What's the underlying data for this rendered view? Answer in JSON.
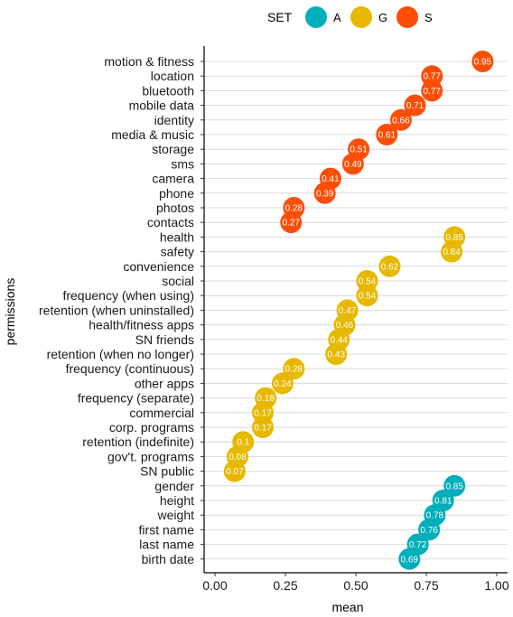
{
  "chart_data": {
    "type": "scatter",
    "title": "",
    "xlabel": "mean",
    "ylabel": "permissions",
    "xlim": [
      0,
      1
    ],
    "xticks": [
      "0.00",
      "0.25",
      "0.50",
      "0.75",
      "1.00"
    ],
    "xtick_values": [
      0,
      0.25,
      0.5,
      0.75,
      1.0
    ],
    "grid": "horizontal",
    "legend": {
      "title": "SET",
      "placement": "top",
      "entries": [
        {
          "name": "A",
          "color": "#00AFBB"
        },
        {
          "name": "G",
          "color": "#E7B800"
        },
        {
          "name": "S",
          "color": "#FC4E07"
        }
      ]
    },
    "points": [
      {
        "label": "motion & fitness",
        "value": 0.95,
        "text": "0.95",
        "set": "S"
      },
      {
        "label": "location",
        "value": 0.77,
        "text": "0.77",
        "set": "S"
      },
      {
        "label": "bluetooth",
        "value": 0.77,
        "text": "0.77",
        "set": "S"
      },
      {
        "label": "mobile data",
        "value": 0.71,
        "text": "0.71",
        "set": "S"
      },
      {
        "label": "identity",
        "value": 0.66,
        "text": "0.66",
        "set": "S"
      },
      {
        "label": "media & music",
        "value": 0.61,
        "text": "0.61",
        "set": "S"
      },
      {
        "label": "storage",
        "value": 0.51,
        "text": "0.51",
        "set": "S"
      },
      {
        "label": "sms",
        "value": 0.49,
        "text": "0.49",
        "set": "S"
      },
      {
        "label": "camera",
        "value": 0.41,
        "text": "0.41",
        "set": "S"
      },
      {
        "label": "phone",
        "value": 0.39,
        "text": "0.39",
        "set": "S"
      },
      {
        "label": "photos",
        "value": 0.28,
        "text": "0.28",
        "set": "S"
      },
      {
        "label": "contacts",
        "value": 0.27,
        "text": "0.27",
        "set": "S"
      },
      {
        "label": "health",
        "value": 0.85,
        "text": "0.85",
        "set": "G"
      },
      {
        "label": "safety",
        "value": 0.84,
        "text": "0.84",
        "set": "G"
      },
      {
        "label": "convenience",
        "value": 0.62,
        "text": "0.62",
        "set": "G"
      },
      {
        "label": "social",
        "value": 0.54,
        "text": "0.54",
        "set": "G"
      },
      {
        "label": "frequency (when using)",
        "value": 0.54,
        "text": "0.54",
        "set": "G"
      },
      {
        "label": "retention (when uninstalled)",
        "value": 0.47,
        "text": "0.47",
        "set": "G"
      },
      {
        "label": "health/fitness apps",
        "value": 0.46,
        "text": "0.46",
        "set": "G"
      },
      {
        "label": "SN friends",
        "value": 0.44,
        "text": "0.44",
        "set": "G"
      },
      {
        "label": "retention (when no longer)",
        "value": 0.43,
        "text": "0.43",
        "set": "G"
      },
      {
        "label": "frequency (continuous)",
        "value": 0.28,
        "text": "0.28",
        "set": "G"
      },
      {
        "label": "other apps",
        "value": 0.24,
        "text": "0.24",
        "set": "G"
      },
      {
        "label": "frequency (separate)",
        "value": 0.18,
        "text": "0.18",
        "set": "G"
      },
      {
        "label": "commercial",
        "value": 0.17,
        "text": "0.17",
        "set": "G"
      },
      {
        "label": "corp. programs",
        "value": 0.17,
        "text": "0.17",
        "set": "G"
      },
      {
        "label": "retention (indefinite)",
        "value": 0.1,
        "text": "0.1",
        "set": "G"
      },
      {
        "label": "gov't. programs",
        "value": 0.08,
        "text": "0.08",
        "set": "G"
      },
      {
        "label": "SN public",
        "value": 0.07,
        "text": "0.07",
        "set": "G"
      },
      {
        "label": "gender",
        "value": 0.85,
        "text": "0.85",
        "set": "A"
      },
      {
        "label": "height",
        "value": 0.81,
        "text": "0.81",
        "set": "A"
      },
      {
        "label": "weight",
        "value": 0.78,
        "text": "0.78",
        "set": "A"
      },
      {
        "label": "first name",
        "value": 0.76,
        "text": "0.76",
        "set": "A"
      },
      {
        "label": "last name",
        "value": 0.72,
        "text": "0.72",
        "set": "A"
      },
      {
        "label": "birth date",
        "value": 0.69,
        "text": "0.69",
        "set": "A"
      }
    ]
  }
}
